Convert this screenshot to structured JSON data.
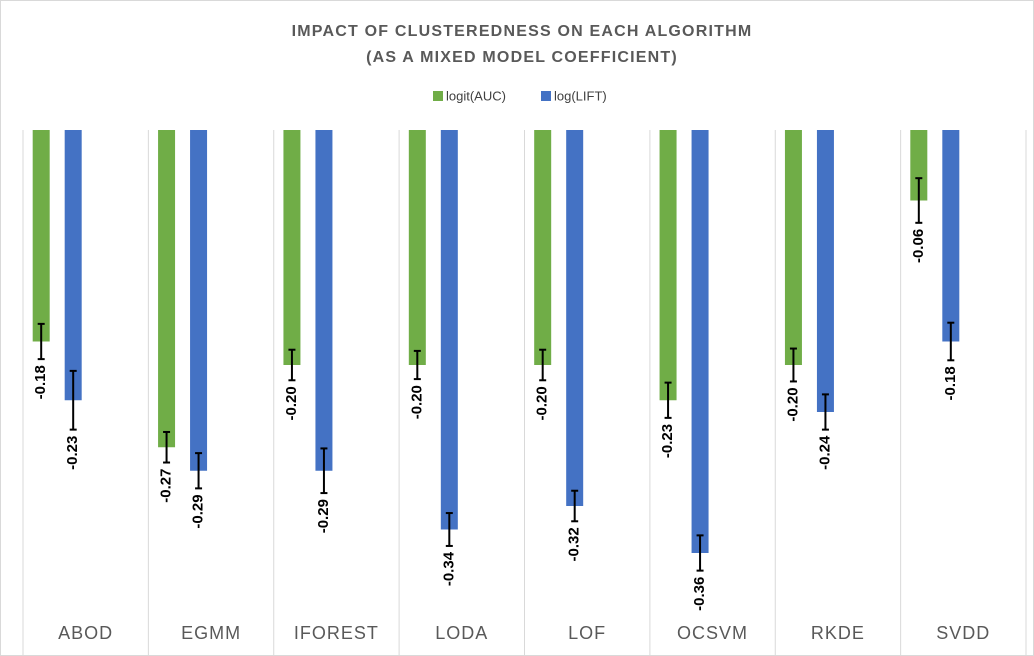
{
  "chart_data": {
    "type": "bar",
    "title": "IMPACT OF CLUSTEREDNESS ON EACH ALGORITHM",
    "subtitle": "(AS A MIXED MODEL COEFFICIENT)",
    "categories": [
      "ABOD",
      "EGMM",
      "IFOREST",
      "LODA",
      "LOF",
      "OCSVM",
      "RKDE",
      "SVDD"
    ],
    "series": [
      {
        "name": "logit(AUC)",
        "color": "#70ad47",
        "values": [
          -0.18,
          -0.27,
          -0.2,
          -0.2,
          -0.2,
          -0.23,
          -0.2,
          -0.06
        ],
        "value_labels": [
          "-0.18",
          "-0.27",
          "-0.20",
          "-0.20",
          "-0.20",
          "-0.23",
          "-0.20",
          "-0.06"
        ],
        "errors": [
          0.015,
          0.013,
          0.013,
          0.012,
          0.013,
          0.015,
          0.014,
          0.019
        ]
      },
      {
        "name": "log(LIFT)",
        "color": "#4472c4",
        "values": [
          -0.23,
          -0.29,
          -0.29,
          -0.34,
          -0.32,
          -0.36,
          -0.24,
          -0.18
        ],
        "value_labels": [
          "-0.23",
          "-0.29",
          "-0.29",
          "-0.34",
          "-0.32",
          "-0.36",
          "-0.24",
          "-0.18"
        ],
        "errors": [
          0.025,
          0.015,
          0.019,
          0.014,
          0.013,
          0.015,
          0.015,
          0.016
        ]
      }
    ],
    "ylim": [
      -0.4,
      0
    ],
    "legend": "top",
    "grid": true
  }
}
